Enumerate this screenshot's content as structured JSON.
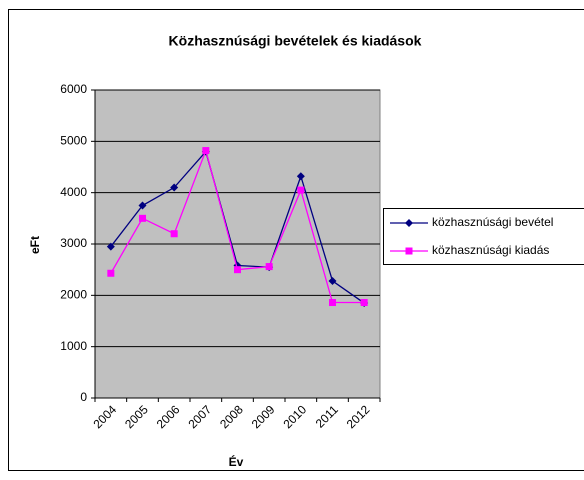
{
  "chart_data": {
    "type": "line",
    "title": "Közhasznúsági bevételek és kiadások",
    "x_label": "Év",
    "y_label": "eFt",
    "categories": [
      "2004",
      "2005",
      "2006",
      "2007",
      "2008",
      "2009",
      "2010",
      "2011",
      "2012"
    ],
    "series": [
      {
        "name": "közhasznúsági bevétel",
        "color": "#000080",
        "marker": "diamond",
        "values": [
          2950,
          3750,
          4100,
          4800,
          2580,
          2550,
          4320,
          2280,
          1850
        ]
      },
      {
        "name": "közhasznúsági kiadás",
        "color": "#ff00ff",
        "marker": "square",
        "values": [
          2430,
          3500,
          3200,
          4820,
          2500,
          2560,
          4050,
          1860,
          1860
        ]
      }
    ],
    "ylim": [
      0,
      6000
    ],
    "yticks": [
      0,
      1000,
      2000,
      3000,
      4000,
      5000,
      6000
    ],
    "grid": true,
    "legend": "right"
  }
}
